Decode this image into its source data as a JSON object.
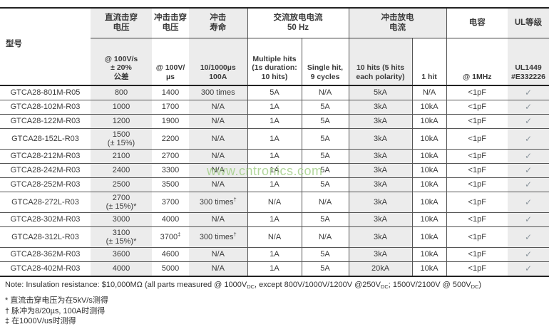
{
  "watermark": {
    "text": "www.cntronics.com",
    "color": "#9fce84"
  },
  "table": {
    "model_header": "型号",
    "check_mark": "✓",
    "shade_color": "#ececec",
    "groups": [
      {
        "label": "直流击穿\n电压",
        "span": 1,
        "shaded": true,
        "vline": false
      },
      {
        "label": "冲击击穿\n电压",
        "span": 1,
        "shaded": false,
        "vline": false
      },
      {
        "label": "冲击\n寿命",
        "span": 1,
        "shaded": true,
        "vline": false
      },
      {
        "label": "交流放电电流\n50 Hz",
        "span": 2,
        "shaded": false,
        "vline": true
      },
      {
        "label": "冲击放电\n电流",
        "span": 2,
        "shaded": true,
        "vline": true
      },
      {
        "label": "电容",
        "span": 1,
        "shaded": false,
        "vline": true
      },
      {
        "label": "UL等级",
        "span": 1,
        "shaded": true,
        "vline": false
      }
    ],
    "subheaders": [
      {
        "label": "@ 100V/s\n± 20%\n公差",
        "shaded": true,
        "vline": false
      },
      {
        "label": "@ 100V/µs",
        "shaded": false,
        "vline": false
      },
      {
        "label": "10/1000µs\n100A",
        "shaded": true,
        "vline": false
      },
      {
        "label": "Multiple hits\n(1s duration:\n10 hits)",
        "shaded": false,
        "vline": true
      },
      {
        "label": "Single hit,\n9 cycles",
        "shaded": false,
        "vline": true
      },
      {
        "label": "10 hits (5 hits\neach polarity)",
        "shaded": true,
        "vline": true
      },
      {
        "label": "1 hit",
        "shaded": false,
        "vline": true
      },
      {
        "label": "@ 1MHz",
        "shaded": false,
        "vline": true
      },
      {
        "label": "UL1449\n#E332226",
        "shaded": true,
        "vline": false
      }
    ],
    "rows": [
      [
        "GTCA28-801M-R05",
        "800",
        "1400",
        "300 times",
        "5A",
        "N/A",
        "5kA",
        "N/A",
        "<1pF",
        "✓"
      ],
      [
        "GTCA28-102M-R03",
        "1000",
        "1700",
        "N/A",
        "1A",
        "5A",
        "3kA",
        "10kA",
        "<1pF",
        "✓"
      ],
      [
        "GTCA28-122M-R03",
        "1200",
        "1900",
        "N/A",
        "1A",
        "5A",
        "3kA",
        "10kA",
        "<1pF",
        "✓"
      ],
      [
        "GTCA28-152L-R03",
        "1500\n(± 15%)",
        "2200",
        "N/A",
        "1A",
        "5A",
        "3kA",
        "10kA",
        "<1pF",
        "✓"
      ],
      [
        "GTCA28-212M-R03",
        "2100",
        "2700",
        "N/A",
        "1A",
        "5A",
        "3kA",
        "10kA",
        "<1pF",
        "✓"
      ],
      [
        "GTCA28-242M-R03",
        "2400",
        "3300",
        "N/A",
        "1A",
        "5A",
        "3kA",
        "10kA",
        "<1pF",
        "✓"
      ],
      [
        "GTCA28-252M-R03",
        "2500",
        "3500",
        "N/A",
        "1A",
        "5A",
        "3kA",
        "10kA",
        "<1pF",
        "✓"
      ],
      [
        "GTCA28-272L-R03",
        "2700\n(± 15%)*",
        "3700",
        "300 times†",
        "N/A",
        "N/A",
        "3kA",
        "10kA",
        "<1pF",
        "✓"
      ],
      [
        "GTCA28-302M-R03",
        "3000",
        "4000",
        "N/A",
        "1A",
        "5A",
        "3kA",
        "10kA",
        "<1pF",
        "✓"
      ],
      [
        "GTCA28-312L-R03",
        "3100\n(± 15%)*",
        "3700‡",
        "300 times†",
        "N/A",
        "N/A",
        "3kA",
        "10kA",
        "<1pF",
        "✓"
      ],
      [
        "GTCA28-362M-R03",
        "3600",
        "4600",
        "N/A",
        "1A",
        "5A",
        "3kA",
        "10kA",
        "<1pF",
        "✓"
      ],
      [
        "GTCA28-402M-R03",
        "4000",
        "5000",
        "N/A",
        "1A",
        "5A",
        "20kA",
        "10kA",
        "<1pF",
        "✓"
      ]
    ]
  },
  "note_parts": [
    {
      "t": "Note: Insulation resistance: $10,000MΩ (all parts measured @ 1000V"
    },
    {
      "sub": "DC"
    },
    {
      "t": ", except 800V/1000V/1200V @250V"
    },
    {
      "sub": "DC"
    },
    {
      "t": "; 1500V/2100V @ 500V"
    },
    {
      "sub": "DC"
    },
    {
      "t": ")"
    }
  ],
  "footnotes": [
    "* 直流击穿电压为在5kV/s测得",
    "† 脉冲为8/20µs, 100A时测得",
    "‡ 在1000V/us时测得"
  ]
}
